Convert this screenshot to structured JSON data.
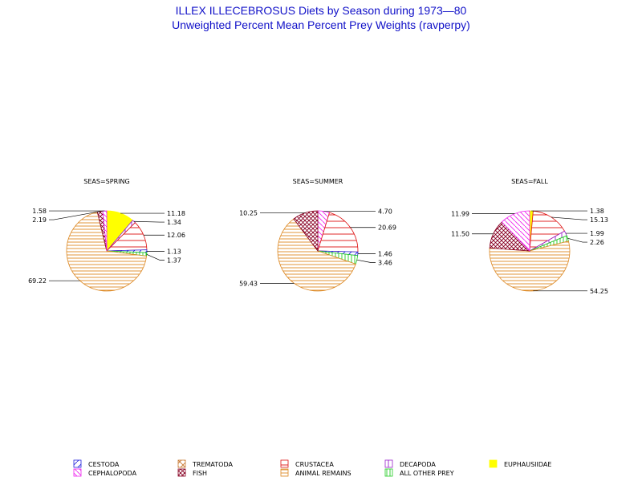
{
  "chart_data": {
    "type": "pie",
    "title": "ILLEX ILLECEBROSUS Diets by Season during 1973—80",
    "subtitle": "Unweighted Percent Mean Percent Prey  Weights (ravperpy)",
    "categories": [
      "CESTODA",
      "TREMATODA",
      "CRUSTACEA",
      "DECAPODA",
      "EUPHAUSIIDAE",
      "CEPHALOPODA",
      "FISH",
      "ANIMAL REMAINS",
      "ALL OTHER PREY"
    ],
    "colors": {
      "CESTODA": "#2222dd",
      "TREMATODA": "#c87830",
      "CRUSTACEA": "#dd1010",
      "DECAPODA": "#9922cc",
      "EUPHAUSIIDAE": "#ffff00",
      "CEPHALOPODA": "#ee22ee",
      "FISH": "#880022",
      "ANIMAL REMAINS": "#dd8822",
      "ALL OTHER PREY": "#22cc22"
    },
    "pies": [
      {
        "label": "SEAS=SPRING",
        "slices": [
          {
            "category": "EUPHAUSIIDAE",
            "value": 11.18,
            "label": "11.18"
          },
          {
            "category": "DECAPODA",
            "value": 1.34,
            "label": "1.34"
          },
          {
            "category": "CRUSTACEA",
            "value": 12.06,
            "label": "12.06"
          },
          {
            "category": "CESTODA",
            "value": 1.13,
            "label": "1.13"
          },
          {
            "category": "ALL OTHER PREY",
            "value": 1.37,
            "label": "1.37"
          },
          {
            "category": "ANIMAL REMAINS",
            "value": 69.22,
            "label": "69.22"
          },
          {
            "category": "FISH",
            "value": 2.19,
            "label": "2.19"
          },
          {
            "category": "CEPHALOPODA",
            "value": 1.58,
            "label": "1.58"
          }
        ]
      },
      {
        "label": "SEAS=SUMMER",
        "slices": [
          {
            "category": "CEPHALOPODA",
            "value": 4.7,
            "label": "4.70"
          },
          {
            "category": "CRUSTACEA",
            "value": 20.69,
            "label": "20.69"
          },
          {
            "category": "CESTODA",
            "value": 1.46,
            "label": "1.46"
          },
          {
            "category": "ALL OTHER PREY",
            "value": 3.46,
            "label": "3.46"
          },
          {
            "category": "ANIMAL REMAINS",
            "value": 59.43,
            "label": "59.43"
          },
          {
            "category": "FISH",
            "value": 10.25,
            "label": "10.25"
          }
        ]
      },
      {
        "label": "SEAS=FALL",
        "slices": [
          {
            "category": "EUPHAUSIIDAE",
            "value": 1.38,
            "label": "1.38"
          },
          {
            "category": "CRUSTACEA",
            "value": 15.13,
            "label": "15.13"
          },
          {
            "category": "DECAPODA",
            "value": 1.99,
            "label": "1.99"
          },
          {
            "category": "ALL OTHER PREY",
            "value": 2.26,
            "label": "2.26"
          },
          {
            "category": "ANIMAL REMAINS",
            "value": 54.25,
            "label": "54.25"
          },
          {
            "category": "FISH",
            "value": 11.5,
            "label": "11.50"
          },
          {
            "category": "CEPHALOPODA",
            "value": 11.99,
            "label": "11.99"
          }
        ]
      }
    ],
    "legend_position": "bottom"
  }
}
